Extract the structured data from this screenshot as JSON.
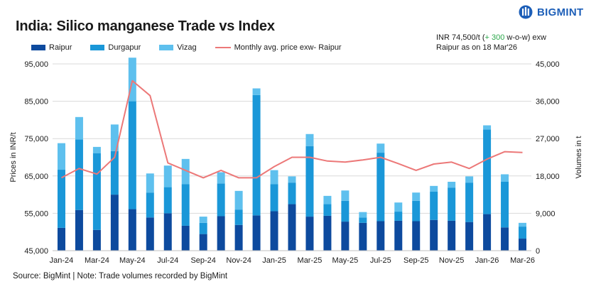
{
  "header": {
    "title": "India: Silico manganese Trade vs Index",
    "brand": "BIGMINT"
  },
  "note": {
    "line1_prefix": "INR 74,500/t (",
    "line1_change": "+ 300",
    "line1_suffix": " w-o-w) exw",
    "line2": "Raipur as on 18 Mar'26"
  },
  "source": "Source: BigMint | Note: Trade volumes recorded by BigMint",
  "colors": {
    "raipur": "#0d4a9e",
    "durgapur": "#1a97d8",
    "vizag": "#5ec0ee",
    "line": "#ec7878",
    "brand": "#1d5fb8"
  },
  "chart_data": {
    "type": "bar",
    "stacked": true,
    "title": "India: Silico manganese Trade vs Index",
    "ylabel": "Prices in INR/t",
    "y2label": "Volumes in t",
    "ylim": [
      45000,
      95000
    ],
    "y2lim": [
      0,
      45000
    ],
    "yticks": [
      "45,000",
      "55,000",
      "65,000",
      "75,000",
      "85,000",
      "95,000"
    ],
    "y2ticks": [
      "0",
      "9,000",
      "18,000",
      "27,000",
      "36,000",
      "45,000"
    ],
    "xtick_labels": [
      "Jan-24",
      "Mar-24",
      "May-24",
      "Jul-24",
      "Sep-24",
      "Nov-24",
      "Jan-25",
      "Mar-25",
      "May-25",
      "Jul-25",
      "Sep-25",
      "Nov-25",
      "Jan-26",
      "Mar-26"
    ],
    "grid": true,
    "legend_position": "top-left",
    "categories": [
      "Jan-24",
      "Feb-24",
      "Mar-24",
      "Apr-24",
      "May-24",
      "Jun-24",
      "Jul-24",
      "Aug-24",
      "Sep-24",
      "Oct-24",
      "Nov-24",
      "Dec-24",
      "Jan-25",
      "Feb-25",
      "Mar-25",
      "Apr-25",
      "May-25",
      "Jun-25",
      "Jul-25",
      "Aug-25",
      "Sep-25",
      "Oct-25",
      "Nov-25",
      "Dec-25",
      "Jan-26",
      "Feb-26",
      "Mar-26"
    ],
    "series": [
      {
        "name": "Raipur",
        "kind": "bar",
        "axis": "right",
        "values": [
          5500,
          9800,
          5000,
          13500,
          10000,
          8000,
          9000,
          6000,
          4000,
          8300,
          6200,
          8500,
          9500,
          11200,
          8200,
          8400,
          7000,
          6700,
          7100,
          7200,
          7100,
          7400,
          7200,
          6900,
          8800,
          5600,
          2900
        ]
      },
      {
        "name": "Durgapur",
        "kind": "bar",
        "axis": "right",
        "values": [
          14000,
          17000,
          18500,
          10500,
          26000,
          6000,
          6300,
          10000,
          2700,
          7900,
          3700,
          29000,
          6500,
          5200,
          17000,
          2800,
          5000,
          1300,
          16500,
          2200,
          4900,
          6800,
          8000,
          9500,
          20400,
          11000,
          2900
        ]
      },
      {
        "name": "Vizag",
        "kind": "bar",
        "axis": "right",
        "values": [
          6400,
          5400,
          1500,
          6400,
          10500,
          4600,
          5200,
          6100,
          1500,
          2700,
          4500,
          1600,
          3400,
          1500,
          2900,
          2000,
          2500,
          1300,
          2200,
          2200,
          2000,
          1400,
          1400,
          1500,
          1000,
          1800,
          900
        ]
      },
      {
        "name": "Monthly avg. price exw- Raipur",
        "kind": "line",
        "axis": "left",
        "values": [
          64500,
          67000,
          65500,
          70000,
          90500,
          86500,
          68500,
          66500,
          64500,
          66500,
          64500,
          64500,
          67500,
          70000,
          70000,
          69000,
          68700,
          69300,
          70000,
          68300,
          66500,
          68200,
          68700,
          67000,
          69500,
          71500,
          71300
        ]
      }
    ]
  }
}
